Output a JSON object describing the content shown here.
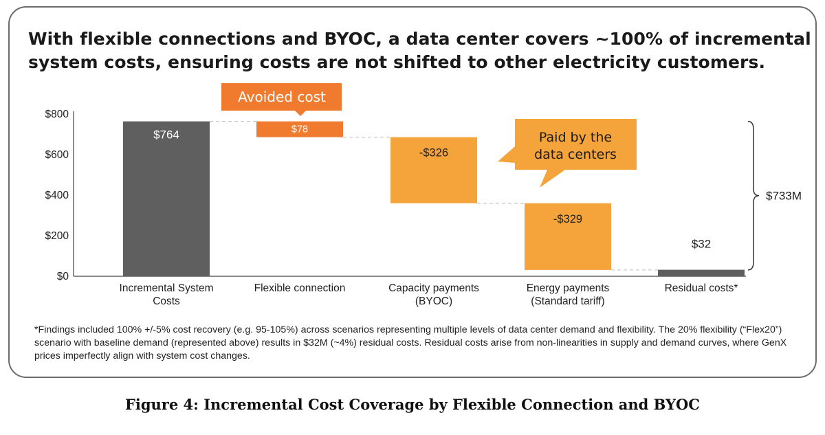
{
  "headline": {
    "line1": "With flexible connections and BYOC, a data center covers ~100% of incremental",
    "line2": "system costs, ensuring costs are not shifted to other electricity customers."
  },
  "chart_data": {
    "type": "bar",
    "subtype": "waterfall",
    "categories": [
      [
        "Incremental System",
        "Costs"
      ],
      [
        "Flexible connection"
      ],
      [
        "Capacity payments",
        "(BYOC)"
      ],
      [
        "Energy payments",
        "(Standard tariff)"
      ],
      [
        "Residual costs*"
      ]
    ],
    "bars": [
      {
        "start": 0,
        "end": 764,
        "label": "$764",
        "kind": "total"
      },
      {
        "start": 764,
        "end": 686,
        "label": "$78",
        "kind": "avoided"
      },
      {
        "start": 686,
        "end": 360,
        "label": "-$326",
        "kind": "paid"
      },
      {
        "start": 360,
        "end": 31,
        "label": "-$329",
        "kind": "paid"
      },
      {
        "start": 0,
        "end": 32,
        "label": "$32",
        "kind": "total"
      }
    ],
    "yticks": [
      0,
      200,
      400,
      600,
      800
    ],
    "ytick_labels": [
      "$0",
      "$200",
      "$400",
      "$600",
      "$800"
    ],
    "ylim": [
      0,
      800
    ],
    "annotations": {
      "avoided_cost": "Avoided cost",
      "paid_by": [
        "Paid by the",
        "data centers"
      ],
      "bracket_total": "$733M"
    },
    "colors": {
      "total": "#5f5f5f",
      "avoided": "#f07a2e",
      "paid": "#f5a43c",
      "callout": "#f5a43c",
      "avoided_callout": "#f07a2e",
      "connector": "#c8c8c8",
      "axis": "#444444"
    }
  },
  "footnote": "*Findings included 100% +/-5% cost recovery (e.g. 95-105%) across scenarios representing multiple levels of data center demand and flexibility. The 20% flexibility (“Flex20”) scenario with baseline demand (represented above) results in $32M (~4%) residual costs. Residual costs arise from non-linearities in supply and demand curves, where GenX prices imperfectly align with system cost changes.",
  "caption": "Figure 4: Incremental Cost Coverage by Flexible Connection and BYOC"
}
